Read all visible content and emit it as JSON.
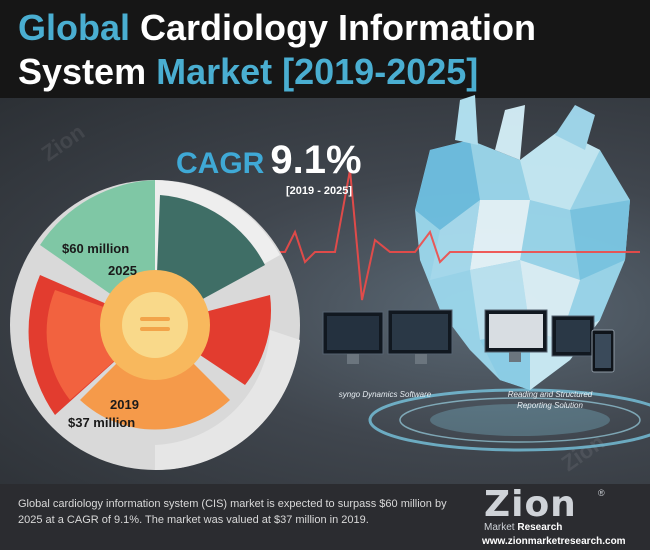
{
  "header": {
    "title_part1": "Global",
    "title_part2": " Cardiology Information",
    "title_part3": "System",
    "title_part4": " Market [2019-2025]"
  },
  "cagr": {
    "label": "CAGR",
    "value": "9.1%",
    "period": "[2019 - 2025]"
  },
  "pie": {
    "label_2025_value": "$60 million",
    "label_2025_year": "2025",
    "label_2019_year": "2019",
    "label_2019_value": "$37 million",
    "center_icon": "equals-icon"
  },
  "captions": {
    "left": "syngo Dynamics Software",
    "right_line1": "Reading and Structured",
    "right_line2": "Reporting Solution"
  },
  "watermark": {
    "text": "Zion",
    "subtext": "Market Research"
  },
  "footer": {
    "text": "Global cardiology information system (CIS) market is expected to surpass $60 million by 2025 at a CAGR of 9.1%. The market was valued at $37 million in 2019.",
    "logo_main": "Zion",
    "logo_reg": "®",
    "logo_market": "Market",
    "logo_research": " Research",
    "url": "www.zionmarketresearch.com"
  },
  "colors": {
    "accent_blue": "#4aaed1",
    "teal": "#7fc7a5",
    "dark_teal": "#3f6e66",
    "red": "#e23c2f",
    "orange_red": "#f2623f",
    "orange": "#f59a4a",
    "light_orange": "#f8b85d",
    "yellow": "#f9d98a",
    "grey": "#d9d9d9"
  }
}
